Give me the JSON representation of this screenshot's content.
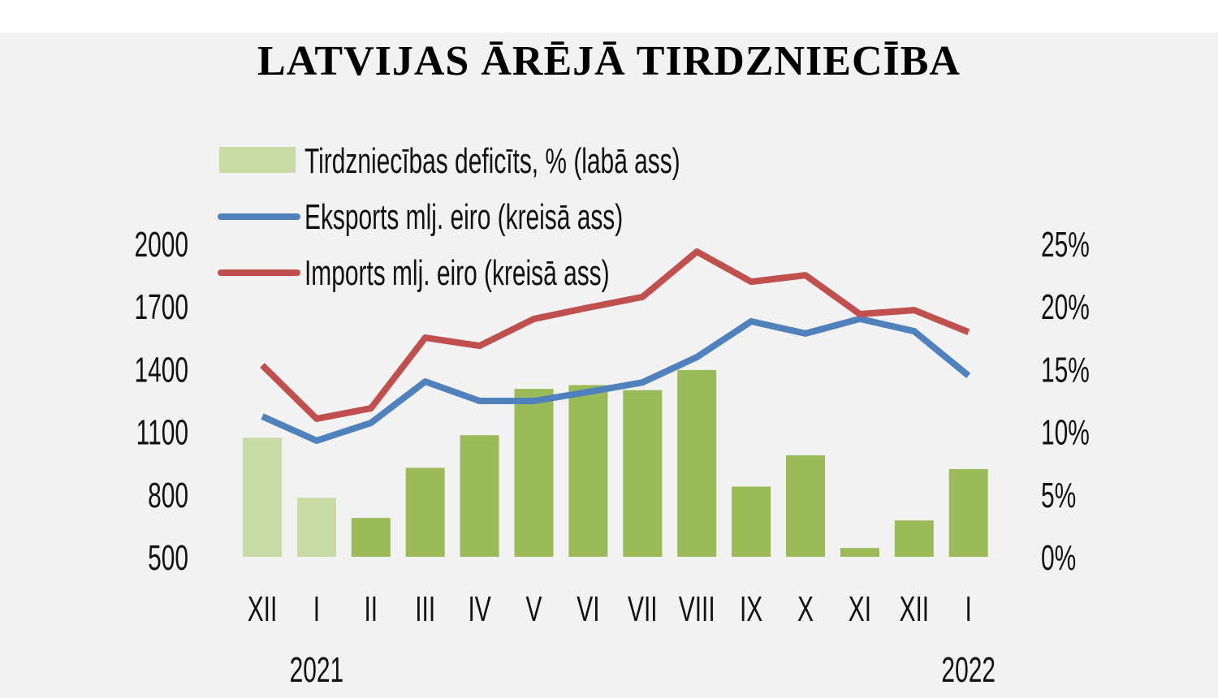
{
  "chart_data": {
    "type": "bar+line",
    "title": "LATVIJAS ĀRĒJĀ TIRDZNIECĪBA",
    "categories": [
      "XII",
      "I",
      "II",
      "III",
      "IV",
      "V",
      "VI",
      "VII",
      "VIII",
      "IX",
      "X",
      "XI",
      "XII",
      "I"
    ],
    "year_labels": [
      {
        "index": 1,
        "label": "2021"
      },
      {
        "index": 13,
        "label": "2022"
      }
    ],
    "left_axis": {
      "ylim": [
        500,
        2000
      ],
      "ticks": [
        "500",
        "800",
        "1100",
        "1400",
        "1700",
        "2000"
      ]
    },
    "right_axis": {
      "ylim": [
        0,
        25
      ],
      "ticks": [
        "0%",
        "5%",
        "10%",
        "15%",
        "20%",
        "25%"
      ]
    },
    "grid": false,
    "legend_placement": "top-left",
    "series": [
      {
        "name": "Tirdzniecības deficīts, % (labā ass)",
        "type": "bar",
        "axis": "right",
        "color": "#9bbb59",
        "highlight_color": "#c9dba4",
        "highlighted_indices": [
          0,
          1
        ],
        "values": [
          9.5,
          4.7,
          3.1,
          7.1,
          9.7,
          13.4,
          13.7,
          13.3,
          14.9,
          5.6,
          8.1,
          0.7,
          2.9,
          7.0
        ]
      },
      {
        "name": "Eksports mlj. eiro (kreisā ass)",
        "type": "line",
        "axis": "left",
        "color": "#4f81bd",
        "values": [
          1172,
          1056,
          1141,
          1339,
          1246,
          1246,
          1289,
          1335,
          1456,
          1627,
          1569,
          1639,
          1580,
          1367
        ]
      },
      {
        "name": "Imports mlj. eiro (kreisā ass)",
        "type": "line",
        "axis": "left",
        "color": "#c0504d",
        "values": [
          1417,
          1161,
          1211,
          1549,
          1510,
          1639,
          1693,
          1744,
          1961,
          1817,
          1848,
          1662,
          1681,
          1576
        ]
      }
    ]
  }
}
